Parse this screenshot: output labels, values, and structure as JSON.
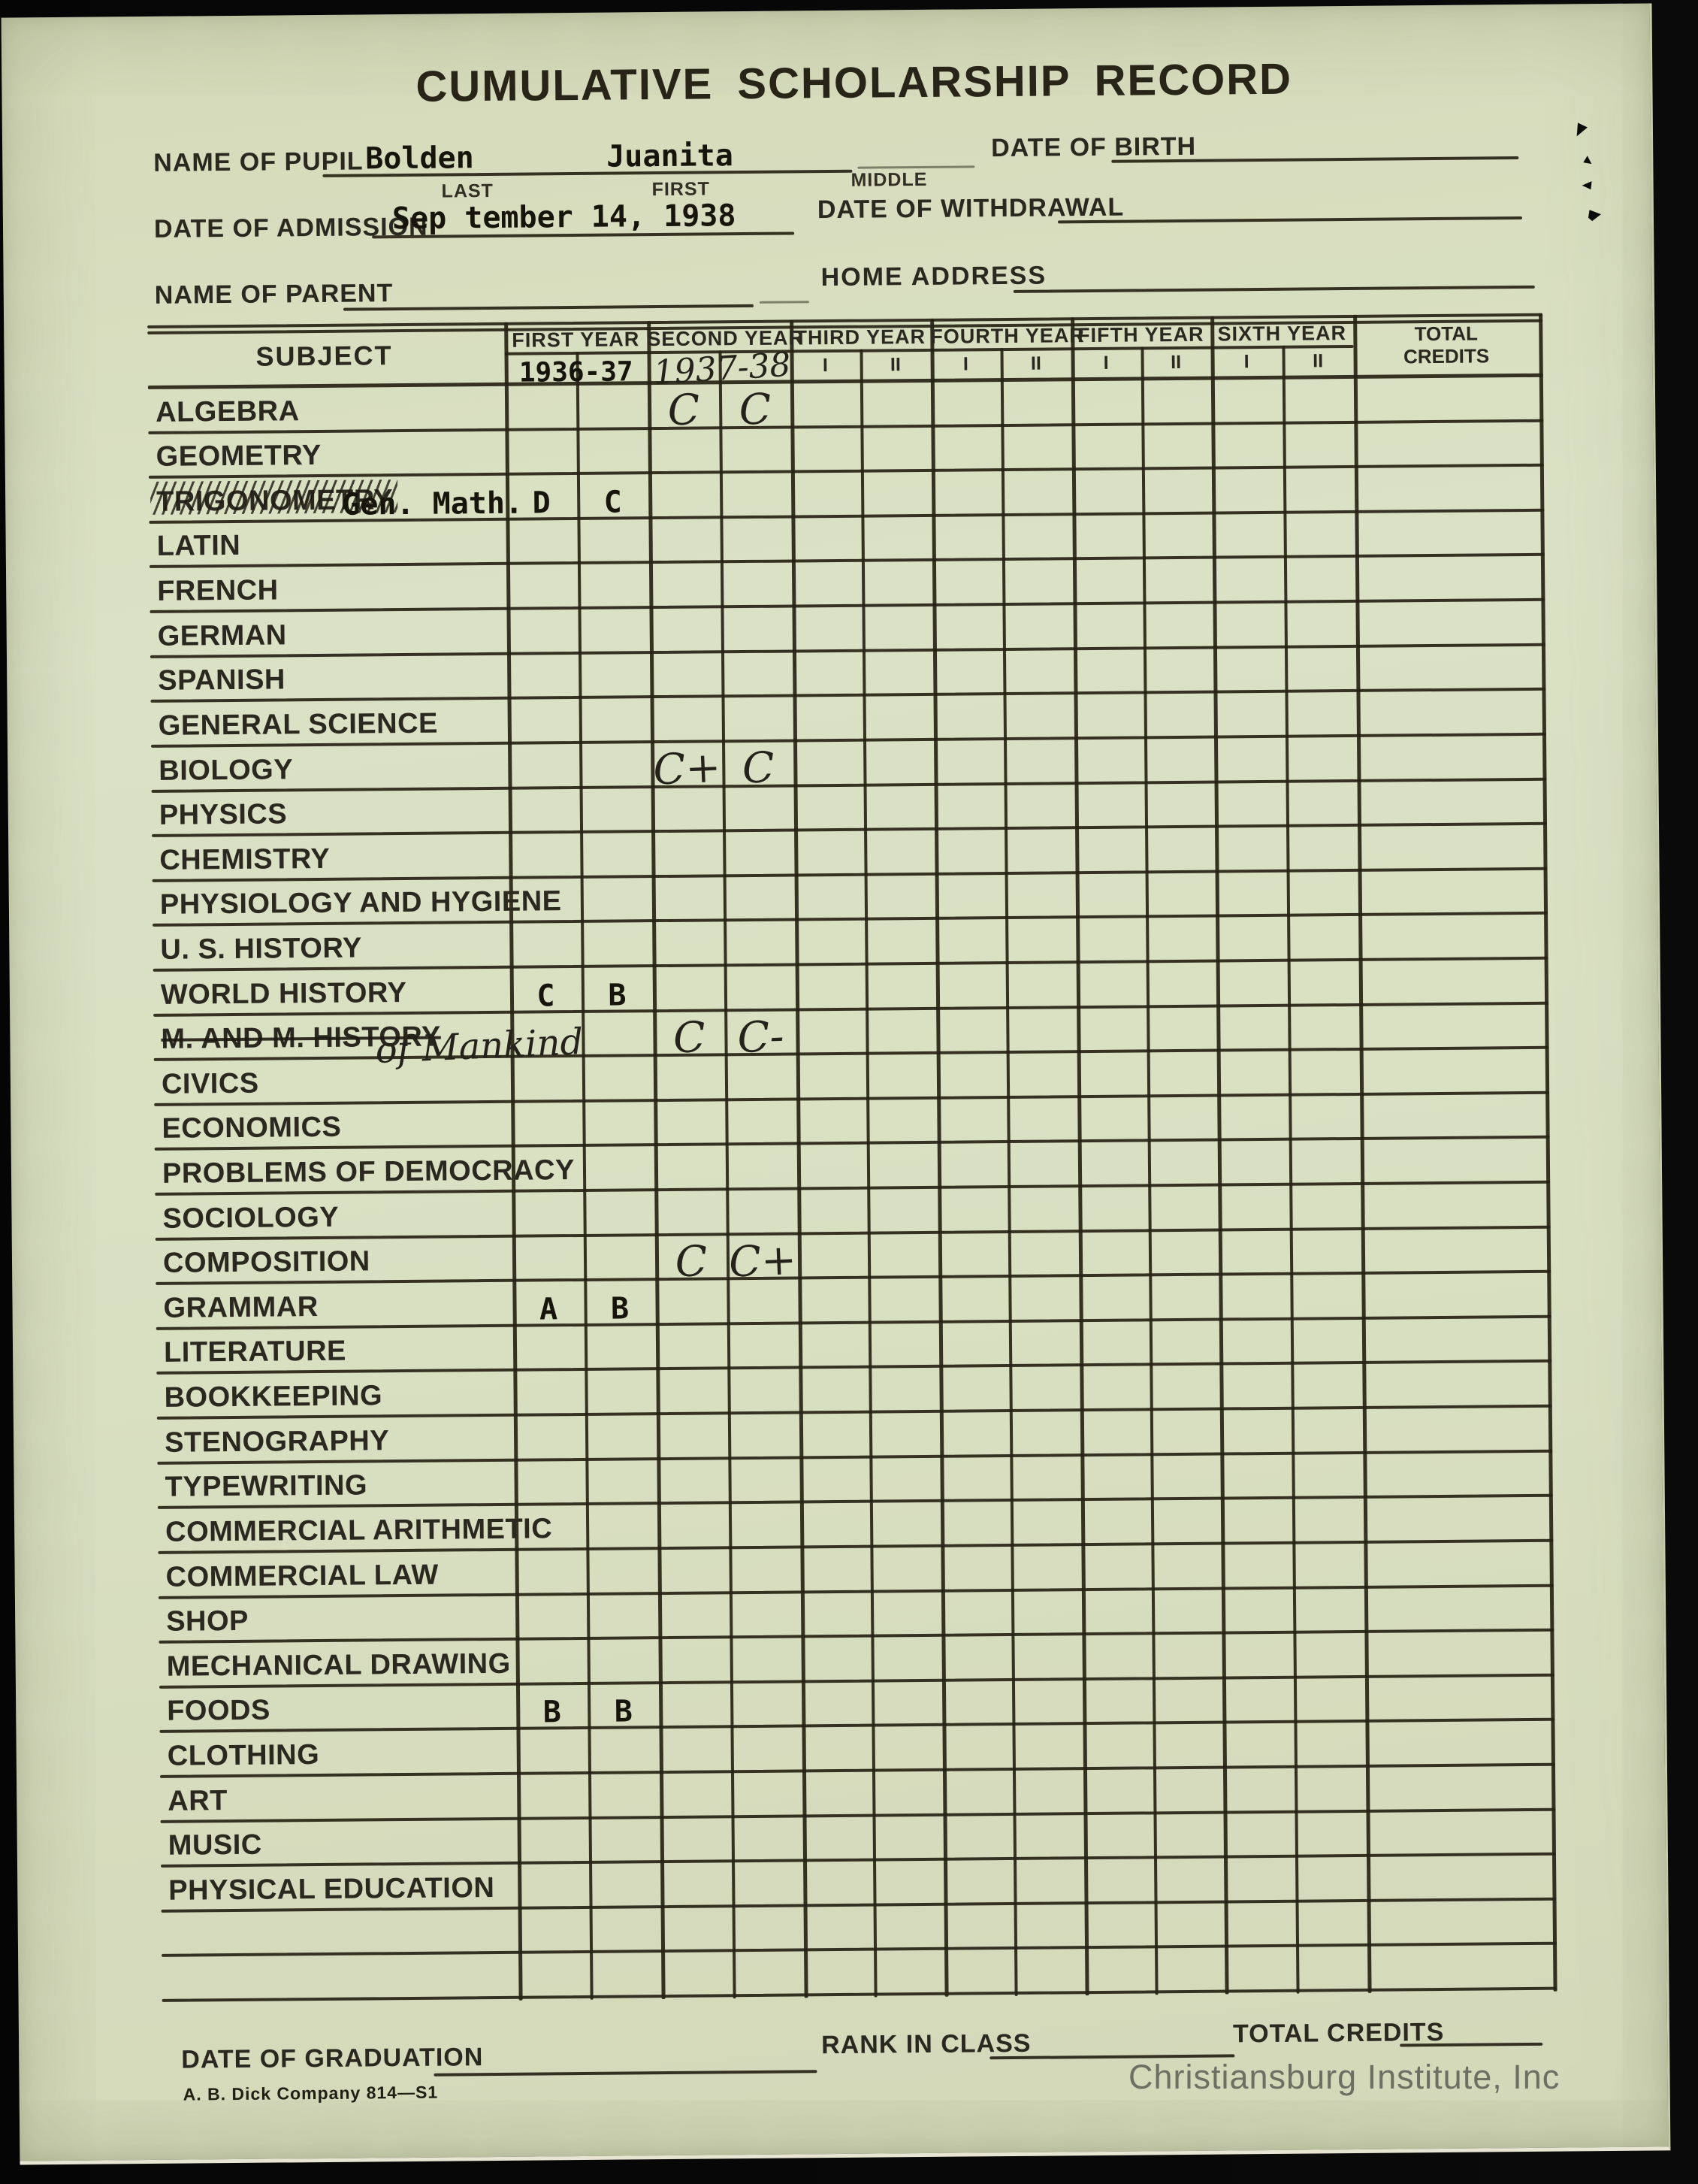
{
  "doc": {
    "title": "CUMULATIVE SCHOLARSHIP RECORD",
    "watermark": "Christiansburg Institute, Inc",
    "colophon": "A. B. Dick Company  814—S1"
  },
  "colors": {
    "paper": "#d9dfc2",
    "ink": "#272315",
    "watermark": "#58585180"
  },
  "fields": {
    "pupil": {
      "label": "NAME OF PUPIL",
      "last": "Bolden",
      "first": "Juanita",
      "sub_last": "LAST",
      "sub_first": "FIRST",
      "sub_middle": "MIDDLE"
    },
    "birth": {
      "label": "DATE OF BIRTH",
      "value": ""
    },
    "admission": {
      "label": "DATE OF ADMISSION",
      "value": "Sep tember 14, 1938"
    },
    "withdrawal": {
      "label": "DATE OF WITHDRAWAL",
      "value": ""
    },
    "parent": {
      "label": "NAME OF PARENT",
      "value": ""
    },
    "address": {
      "label": "HOME ADDRESS",
      "value": ""
    },
    "graduation": {
      "label": "DATE OF GRADUATION",
      "value": ""
    },
    "rank": {
      "label": "RANK IN CLASS",
      "value": ""
    },
    "total": {
      "label": "TOTAL CREDITS",
      "value": ""
    }
  },
  "table": {
    "subject_header": "SUBJECT",
    "total_header": [
      "TOTAL",
      "CREDITS"
    ],
    "sem_labels": [
      "I",
      "II"
    ],
    "years": [
      {
        "label": "FIRST YEAR",
        "value": "1936-37",
        "handwritten": false
      },
      {
        "label": "SECOND YEAR",
        "value": "1937-38",
        "handwritten": true
      },
      {
        "label": "THIRD YEAR",
        "value": ""
      },
      {
        "label": "FOURTH YEAR",
        "value": ""
      },
      {
        "label": "FIFTH YEAR",
        "value": ""
      },
      {
        "label": "SIXTH YEAR",
        "value": ""
      }
    ],
    "rows": [
      {
        "subject": "ALGEBRA",
        "grades": [
          {
            "col": 2,
            "text": "C",
            "hand": true
          },
          {
            "col": 3,
            "text": "C",
            "hand": true
          }
        ]
      },
      {
        "subject": "GEOMETRY",
        "grades": []
      },
      {
        "subject": "TRIGONOMETRY",
        "strike": "slashes",
        "note": {
          "text": "Gen. Math.",
          "hand": false
        },
        "grades": [
          {
            "col": 0,
            "text": "D"
          },
          {
            "col": 1,
            "text": "C"
          }
        ]
      },
      {
        "subject": "LATIN",
        "grades": []
      },
      {
        "subject": "FRENCH",
        "grades": []
      },
      {
        "subject": "GERMAN",
        "grades": []
      },
      {
        "subject": "SPANISH",
        "grades": []
      },
      {
        "subject": "GENERAL SCIENCE",
        "grades": []
      },
      {
        "subject": "BIOLOGY",
        "grades": [
          {
            "col": 2,
            "text": "C+",
            "hand": true
          },
          {
            "col": 3,
            "text": "C",
            "hand": true
          }
        ]
      },
      {
        "subject": "PHYSICS",
        "grades": []
      },
      {
        "subject": "CHEMISTRY",
        "grades": []
      },
      {
        "subject": "PHYSIOLOGY AND HYGIENE",
        "grades": []
      },
      {
        "subject": "U. S. HISTORY",
        "grades": []
      },
      {
        "subject": "WORLD HISTORY",
        "grades": [
          {
            "col": 0,
            "text": "C"
          },
          {
            "col": 1,
            "text": "B"
          }
        ]
      },
      {
        "subject": "M. AND M. HISTORY",
        "strike": "line",
        "note": {
          "text": "of Mankind",
          "hand": true
        },
        "grades": [
          {
            "col": 2,
            "text": "C",
            "hand": true
          },
          {
            "col": 3,
            "text": "C-",
            "hand": true
          }
        ]
      },
      {
        "subject": "CIVICS",
        "grades": []
      },
      {
        "subject": "ECONOMICS",
        "grades": []
      },
      {
        "subject": "PROBLEMS OF DEMOCRACY",
        "grades": []
      },
      {
        "subject": "SOCIOLOGY",
        "grades": []
      },
      {
        "subject": "COMPOSITION",
        "grades": [
          {
            "col": 2,
            "text": "C",
            "hand": true
          },
          {
            "col": 3,
            "text": "C+",
            "hand": true
          }
        ]
      },
      {
        "subject": "GRAMMAR",
        "grades": [
          {
            "col": 0,
            "text": "A"
          },
          {
            "col": 1,
            "text": "B"
          }
        ]
      },
      {
        "subject": "LITERATURE",
        "grades": []
      },
      {
        "subject": "BOOKKEEPING",
        "grades": []
      },
      {
        "subject": "STENOGRAPHY",
        "grades": []
      },
      {
        "subject": "TYPEWRITING",
        "grades": []
      },
      {
        "subject": "COMMERCIAL ARITHMETIC",
        "grades": []
      },
      {
        "subject": "COMMERCIAL LAW",
        "grades": []
      },
      {
        "subject": "SHOP",
        "grades": []
      },
      {
        "subject": "MECHANICAL DRAWING",
        "grades": []
      },
      {
        "subject": "FOODS",
        "grades": [
          {
            "col": 0,
            "text": "B"
          },
          {
            "col": 1,
            "text": "B"
          }
        ]
      },
      {
        "subject": "CLOTHING",
        "grades": []
      },
      {
        "subject": "ART",
        "grades": []
      },
      {
        "subject": "MUSIC",
        "grades": []
      },
      {
        "subject": "PHYSICAL EDUCATION",
        "grades": []
      },
      {
        "subject": "",
        "grades": []
      },
      {
        "subject": "",
        "grades": []
      }
    ]
  }
}
